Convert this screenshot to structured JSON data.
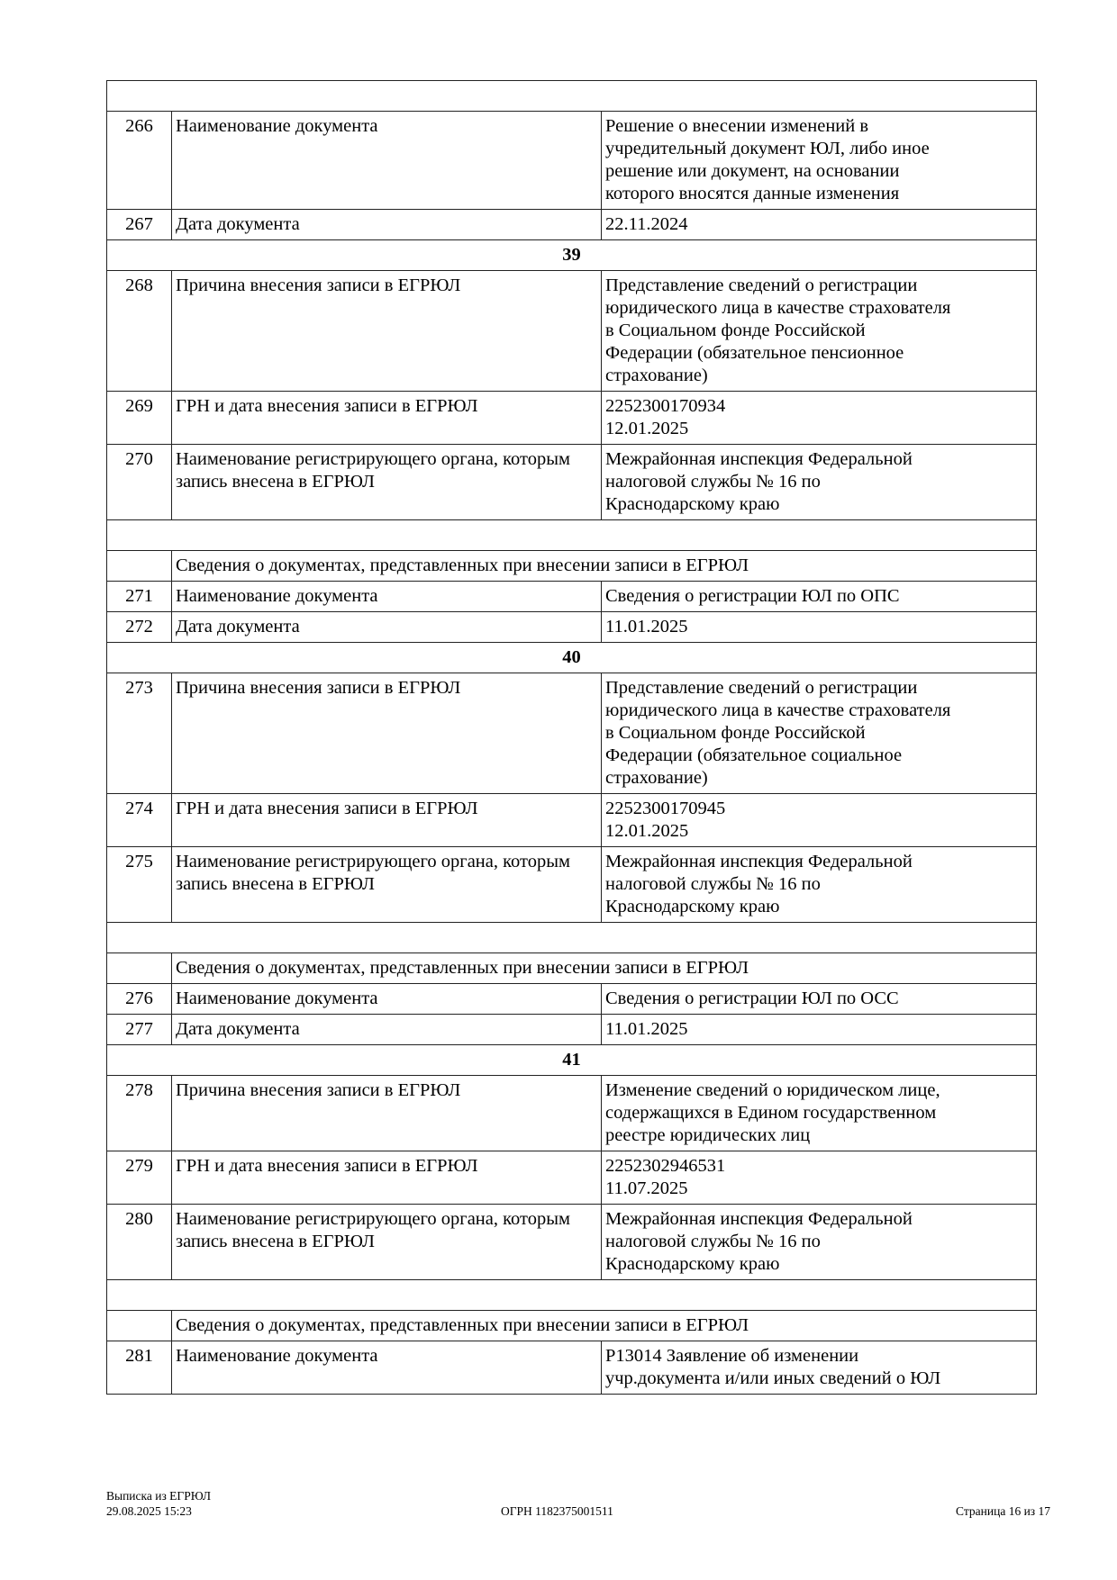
{
  "rows": [
    {
      "type": "blank"
    },
    {
      "type": "item",
      "num": "266",
      "label": "Наименование документа",
      "value": [
        "Решение о внесении изменений в",
        "учредительный документ ЮЛ, либо иное",
        "решение или документ, на основании",
        "которого вносятся данные изменения"
      ]
    },
    {
      "type": "item",
      "num": "267",
      "label": "Дата документа",
      "value": [
        "22.11.2024"
      ]
    },
    {
      "type": "section",
      "text": "39"
    },
    {
      "type": "item",
      "num": "268",
      "label": "Причина внесения записи в ЕГРЮЛ",
      "value": [
        "Представление сведений о регистрации",
        "юридического лица в качестве страхователя",
        "в Социальном фонде Российской",
        "Федерации (обязательное пенсионное",
        "страхование)"
      ]
    },
    {
      "type": "item",
      "num": "269",
      "label": "ГРН и дата внесения записи в ЕГРЮЛ",
      "value": [
        "2252300170934",
        "12.01.2025"
      ]
    },
    {
      "type": "item",
      "num": "270",
      "label": "Наименование регистрирующего органа, которым запись внесена в ЕГРЮЛ",
      "value": [
        "Межрайонная инспекция Федеральной",
        "налоговой службы № 16 по",
        "Краснодарскому краю"
      ]
    },
    {
      "type": "blank"
    },
    {
      "type": "subheader",
      "text": "Сведения о документах, представленных при внесении записи в ЕГРЮЛ"
    },
    {
      "type": "item",
      "num": "271",
      "label": "Наименование документа",
      "value": [
        "Сведения о регистрации ЮЛ по ОПС"
      ]
    },
    {
      "type": "item",
      "num": "272",
      "label": "Дата документа",
      "value": [
        "11.01.2025"
      ]
    },
    {
      "type": "section",
      "text": "40"
    },
    {
      "type": "item",
      "num": "273",
      "label": "Причина внесения записи в ЕГРЮЛ",
      "value": [
        "Представление сведений о регистрации",
        "юридического лица в качестве страхователя",
        "в Социальном фонде Российской",
        "Федерации (обязательное социальное",
        "страхование)"
      ]
    },
    {
      "type": "item",
      "num": "274",
      "label": "ГРН и дата внесения записи в ЕГРЮЛ",
      "value": [
        "2252300170945",
        "12.01.2025"
      ]
    },
    {
      "type": "item",
      "num": "275",
      "label": "Наименование регистрирующего органа, которым запись внесена в ЕГРЮЛ",
      "value": [
        "Межрайонная инспекция Федеральной",
        "налоговой службы № 16 по",
        "Краснодарскому краю"
      ]
    },
    {
      "type": "blank"
    },
    {
      "type": "subheader",
      "text": "Сведения о документах, представленных при внесении записи в ЕГРЮЛ"
    },
    {
      "type": "item",
      "num": "276",
      "label": "Наименование документа",
      "value": [
        "Сведения о регистрации ЮЛ по ОСС"
      ]
    },
    {
      "type": "item",
      "num": "277",
      "label": "Дата документа",
      "value": [
        "11.01.2025"
      ]
    },
    {
      "type": "section",
      "text": "41"
    },
    {
      "type": "item",
      "num": "278",
      "label": "Причина внесения записи в ЕГРЮЛ",
      "value": [
        "Изменение сведений о юридическом лице,",
        "содержащихся в Едином государственном",
        "реестре юридических лиц"
      ]
    },
    {
      "type": "item",
      "num": "279",
      "label": "ГРН и дата внесения записи в ЕГРЮЛ",
      "value": [
        "2252302946531",
        "11.07.2025"
      ]
    },
    {
      "type": "item",
      "num": "280",
      "label": "Наименование регистрирующего органа, которым запись внесена в ЕГРЮЛ",
      "value": [
        "Межрайонная инспекция Федеральной",
        "налоговой службы № 16 по",
        "Краснодарскому краю"
      ]
    },
    {
      "type": "blank"
    },
    {
      "type": "subheader",
      "text": "Сведения о документах, представленных при внесении записи в ЕГРЮЛ"
    },
    {
      "type": "item",
      "num": "281",
      "label": "Наименование документа",
      "value": [
        "Р13014 Заявление об изменении",
        "учр.документа и/или иных сведений о ЮЛ"
      ]
    }
  ],
  "footer": {
    "title": "Выписка из ЕГРЮЛ",
    "datetime": "29.08.2025 15:23",
    "ogrn": "ОГРН 1182375001511",
    "page": "Страница 16 из 17"
  }
}
